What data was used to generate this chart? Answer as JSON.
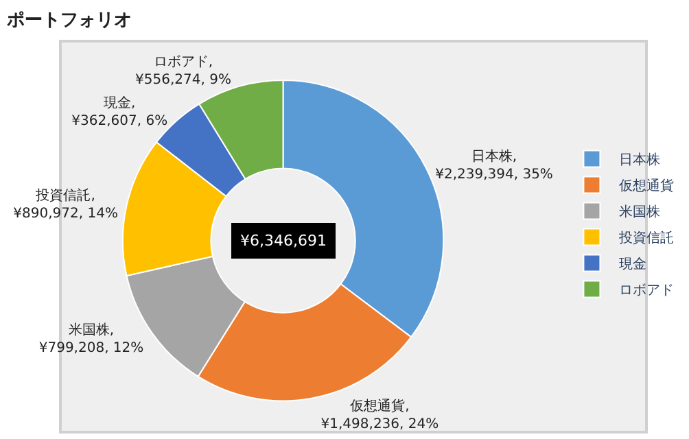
{
  "chart_data": {
    "type": "donut",
    "title": "ポートフォリオ",
    "categories": [
      "日本株",
      "仮想通貨",
      "米国株",
      "投資信託",
      "現金",
      "ロボアド"
    ],
    "values": [
      2239394,
      1498236,
      799208,
      890972,
      362607,
      556274
    ],
    "colors": [
      "#5b9bd5",
      "#ed7d31",
      "#a5a5a5",
      "#ffc000",
      "#4472c4",
      "#70ad47"
    ],
    "value_labels": [
      "日本株, ¥2,239,394, 35%",
      "仮想通貨, ¥1,498,236, 24%",
      "米国株, ¥799,208, 12%",
      "投資信託, ¥890,972, 14%",
      "現金, ¥362,607, 6%",
      "ロボアド, ¥556,274, 9%"
    ],
    "annotations": [
      "¥6,346,691"
    ],
    "legend": "right"
  }
}
